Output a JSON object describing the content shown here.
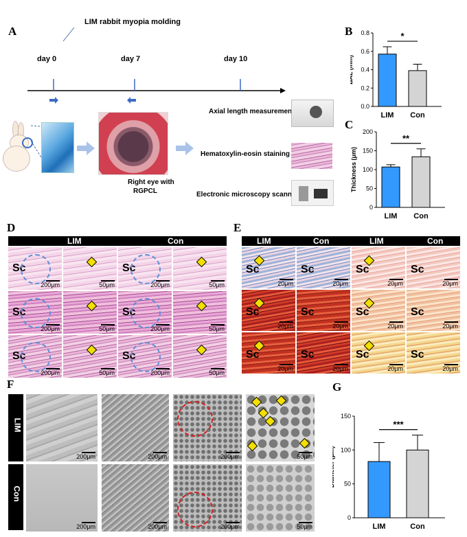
{
  "panelA": {
    "label": "A",
    "title": "LIM rabbit myopia molding",
    "days": [
      "day 0",
      "day 7",
      "day 10"
    ],
    "right_eye_line1": "Right eye with",
    "right_eye_line2": "RGPCL",
    "steps": [
      "Axial length measurement",
      "Hematoxylin-eosin staining",
      "Electronic microscopy scanning"
    ]
  },
  "panelD": {
    "label": "D",
    "groups": [
      "LIM",
      "Con"
    ],
    "sc": "Sc",
    "scale_low": "200μm",
    "scale_high": "50μm"
  },
  "panelE": {
    "label": "E",
    "groups": [
      "LIM",
      "Con",
      "LIM",
      "Con"
    ],
    "sc": "Sc",
    "scale": "20μm"
  },
  "panelF": {
    "label": "F",
    "groups": [
      "LIM",
      "Con"
    ],
    "scale_low": "200μm",
    "scale_high": "50μm"
  },
  "chart_data": [
    {
      "label": "B",
      "type": "bar",
      "categories": [
        "LIM",
        "Con"
      ],
      "values": [
        0.57,
        0.39
      ],
      "errors": [
        0.08,
        0.07
      ],
      "ylabel": "ΔAL (mm)",
      "ylim": [
        0,
        0.8
      ],
      "yticks": [
        "0.0",
        "0.2",
        "0.4",
        "0.6",
        "0.8"
      ],
      "significance": "*",
      "colors": [
        "#3399ff",
        "#d4d4d4"
      ]
    },
    {
      "label": "C",
      "type": "bar",
      "categories": [
        "LIM",
        "Con"
      ],
      "values": [
        107,
        134
      ],
      "errors": [
        6,
        21
      ],
      "ylabel": "Thickness (μm)",
      "ylim": [
        0,
        200
      ],
      "yticks": [
        "0",
        "50",
        "100",
        "150",
        "200"
      ],
      "significance": "**",
      "colors": [
        "#3399ff",
        "#d4d4d4"
      ]
    },
    {
      "label": "G",
      "type": "bar",
      "categories": [
        "LIM",
        "Con"
      ],
      "values": [
        83,
        100
      ],
      "errors": [
        28,
        22
      ],
      "ylabel": "Diameter (μm)",
      "ylim": [
        0,
        150
      ],
      "yticks": [
        "0",
        "50",
        "100",
        "150"
      ],
      "significance": "***",
      "colors": [
        "#3399ff",
        "#d4d4d4"
      ]
    }
  ]
}
